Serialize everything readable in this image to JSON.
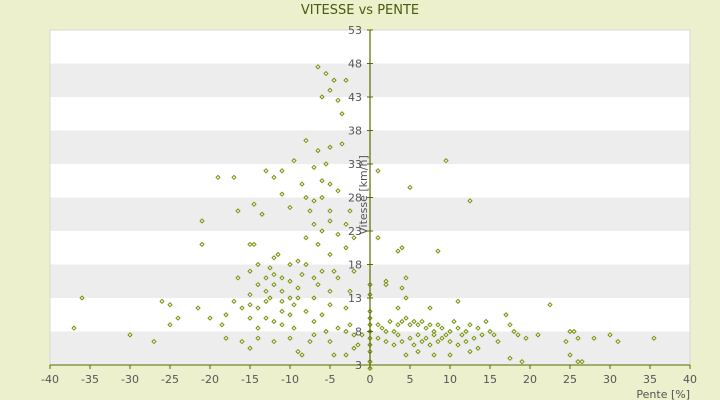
{
  "chart_data": {
    "type": "scatter",
    "title": "VITESSE vs PENTE",
    "xlabel": "Pente [%]",
    "ylabel": "Vitesse [km/h]",
    "xlim": [
      -40,
      40
    ],
    "ylim": [
      3,
      53
    ],
    "x_ticks": [
      -40,
      -35,
      -30,
      -25,
      -20,
      -15,
      -10,
      -5,
      0,
      5,
      10,
      15,
      20,
      25,
      30,
      35,
      40
    ],
    "y_ticks": [
      3,
      8,
      13,
      18,
      23,
      28,
      33,
      38,
      43,
      48,
      53
    ],
    "grid": "alternating horizontal bands",
    "legend": "none",
    "colors": {
      "background": "#ecf0cc",
      "band_light": "#ffffff",
      "band_dark": "#ededed",
      "marker": "#6b8a00",
      "axis": "#5a6a00"
    },
    "points": [
      [
        -6.5,
        47.5
      ],
      [
        -5.5,
        46.5
      ],
      [
        -4.5,
        45.5
      ],
      [
        -3.0,
        45.5
      ],
      [
        -5.0,
        44.0
      ],
      [
        -6.0,
        43.0
      ],
      [
        -4.0,
        42.5
      ],
      [
        -3.5,
        40.5
      ],
      [
        -8.0,
        36.5
      ],
      [
        -5.0,
        35.5
      ],
      [
        -6.5,
        35.0
      ],
      [
        -3.5,
        36.0
      ],
      [
        -9.5,
        33.5
      ],
      [
        -5.5,
        33.0
      ],
      [
        -7.0,
        32.5
      ],
      [
        -13.0,
        32.0
      ],
      [
        -12.0,
        31.0
      ],
      [
        -11.0,
        32.0
      ],
      [
        -19.0,
        31.0
      ],
      [
        -17.0,
        31.0
      ],
      [
        -8.5,
        30.0
      ],
      [
        -6.0,
        30.5
      ],
      [
        -5.0,
        30.0
      ],
      [
        -4.0,
        29.0
      ],
      [
        -11.0,
        28.5
      ],
      [
        -8.0,
        28.0
      ],
      [
        -7.0,
        27.5
      ],
      [
        -6.0,
        28.0
      ],
      [
        -14.5,
        27.0
      ],
      [
        -10.0,
        26.5
      ],
      [
        -7.5,
        26.0
      ],
      [
        -5.0,
        26.0
      ],
      [
        -16.5,
        26.0
      ],
      [
        -13.5,
        25.5
      ],
      [
        -2.5,
        26.0
      ],
      [
        -21.0,
        24.5
      ],
      [
        -7.0,
        24.0
      ],
      [
        -5.0,
        24.5
      ],
      [
        -3.0,
        24.0
      ],
      [
        -6.0,
        23.0
      ],
      [
        -4.0,
        22.5
      ],
      [
        -2.0,
        22.0
      ],
      [
        -8.0,
        22.0
      ],
      [
        -14.5,
        21.0
      ],
      [
        -15.0,
        21.0
      ],
      [
        -21.0,
        21.0
      ],
      [
        -6.5,
        21.0
      ],
      [
        -3.0,
        20.5
      ],
      [
        -5.0,
        19.5
      ],
      [
        -11.5,
        19.5
      ],
      [
        -12.0,
        19.0
      ],
      [
        -9.0,
        18.5
      ],
      [
        -14.0,
        18.0
      ],
      [
        -10.0,
        18.0
      ],
      [
        -8.0,
        18.0
      ],
      [
        -12.5,
        17.5
      ],
      [
        -15.0,
        17.0
      ],
      [
        -6.0,
        17.0
      ],
      [
        -4.5,
        17.0
      ],
      [
        -2.0,
        17.0
      ],
      [
        -12.0,
        16.5
      ],
      [
        -8.5,
        16.5
      ],
      [
        -16.5,
        16.0
      ],
      [
        -13.0,
        16.0
      ],
      [
        -11.0,
        16.0
      ],
      [
        -7.0,
        16.0
      ],
      [
        -4.0,
        16.0
      ],
      [
        -10.0,
        15.5
      ],
      [
        -14.0,
        15.0
      ],
      [
        -12.0,
        15.0
      ],
      [
        -6.5,
        15.0
      ],
      [
        -9.0,
        14.5
      ],
      [
        -5.0,
        14.0
      ],
      [
        -13.0,
        14.0
      ],
      [
        -11.0,
        14.0
      ],
      [
        -2.5,
        14.0
      ],
      [
        -15.0,
        13.5
      ],
      [
        -12.5,
        13.0
      ],
      [
        -10.0,
        13.0
      ],
      [
        -9.0,
        13.0
      ],
      [
        -7.0,
        13.0
      ],
      [
        -36.0,
        13.0
      ],
      [
        -26.0,
        12.5
      ],
      [
        -17.0,
        12.5
      ],
      [
        -13.0,
        12.5
      ],
      [
        -11.0,
        12.5
      ],
      [
        -15.0,
        12.0
      ],
      [
        -9.5,
        12.0
      ],
      [
        -5.0,
        12.0
      ],
      [
        -25.0,
        12.0
      ],
      [
        -21.5,
        11.5
      ],
      [
        -16.0,
        11.5
      ],
      [
        -14.0,
        11.5
      ],
      [
        -11.0,
        11.0
      ],
      [
        -8.0,
        11.0
      ],
      [
        -3.0,
        11.5
      ],
      [
        -18.0,
        10.5
      ],
      [
        -13.0,
        10.0
      ],
      [
        -10.0,
        10.5
      ],
      [
        -6.0,
        10.5
      ],
      [
        -24.0,
        10.0
      ],
      [
        -20.0,
        10.0
      ],
      [
        -15.0,
        10.0
      ],
      [
        -12.0,
        9.5
      ],
      [
        -7.0,
        9.5
      ],
      [
        -18.5,
        9.0
      ],
      [
        -11.0,
        9.0
      ],
      [
        -14.0,
        8.5
      ],
      [
        -9.5,
        8.5
      ],
      [
        -5.5,
        8.0
      ],
      [
        -25.0,
        9.0
      ],
      [
        -37.0,
        8.5
      ],
      [
        -30.0,
        7.5
      ],
      [
        -18.0,
        7.0
      ],
      [
        -14.0,
        7.0
      ],
      [
        -10.0,
        7.0
      ],
      [
        -7.0,
        7.5
      ],
      [
        -3.0,
        8.0
      ],
      [
        -2.0,
        7.5
      ],
      [
        -27.0,
        6.5
      ],
      [
        -16.0,
        6.5
      ],
      [
        -12.0,
        6.5
      ],
      [
        -7.5,
        6.5
      ],
      [
        -5.0,
        6.5
      ],
      [
        -15.0,
        5.5
      ],
      [
        -9.0,
        5.0
      ],
      [
        -8.5,
        4.5
      ],
      [
        -4.5,
        4.5
      ],
      [
        -3.0,
        4.5
      ],
      [
        -2.0,
        5.5
      ],
      [
        -1.5,
        6.0
      ],
      [
        -1.0,
        7.5
      ],
      [
        -4.0,
        8.5
      ],
      [
        -2.5,
        9.0
      ],
      [
        0.0,
        2.5
      ],
      [
        0.0,
        3.5
      ],
      [
        0.0,
        5.0
      ],
      [
        0.0,
        6.0
      ],
      [
        0.0,
        7.0
      ],
      [
        0.0,
        8.0
      ],
      [
        0.0,
        9.0
      ],
      [
        0.0,
        10.0
      ],
      [
        0.0,
        11.0
      ],
      [
        0.0,
        13.5
      ],
      [
        0.0,
        15.0
      ],
      [
        1.0,
        32.0
      ],
      [
        1.0,
        22.0
      ],
      [
        2.0,
        15.5
      ],
      [
        2.0,
        15.0
      ],
      [
        3.5,
        20.0
      ],
      [
        4.0,
        20.5
      ],
      [
        4.5,
        16.0
      ],
      [
        4.0,
        14.5
      ],
      [
        4.5,
        13.0
      ],
      [
        3.5,
        11.5
      ],
      [
        5.0,
        29.5
      ],
      [
        8.5,
        20.0
      ],
      [
        9.5,
        33.5
      ],
      [
        12.5,
        27.5
      ],
      [
        7.5,
        11.5
      ],
      [
        11.0,
        12.5
      ],
      [
        1.0,
        9.0
      ],
      [
        1.5,
        8.5
      ],
      [
        2.0,
        8.0
      ],
      [
        2.5,
        9.5
      ],
      [
        3.0,
        8.0
      ],
      [
        3.5,
        9.0
      ],
      [
        4.0,
        9.5
      ],
      [
        4.5,
        10.0
      ],
      [
        5.0,
        9.0
      ],
      [
        5.5,
        9.5
      ],
      [
        6.0,
        9.0
      ],
      [
        6.5,
        9.5
      ],
      [
        7.0,
        8.5
      ],
      [
        7.5,
        9.0
      ],
      [
        8.0,
        8.0
      ],
      [
        8.5,
        9.0
      ],
      [
        9.0,
        8.5
      ],
      [
        9.5,
        7.5
      ],
      [
        10.0,
        8.0
      ],
      [
        10.5,
        9.5
      ],
      [
        11.0,
        8.5
      ],
      [
        11.5,
        7.5
      ],
      [
        12.0,
        8.0
      ],
      [
        12.5,
        9.0
      ],
      [
        13.0,
        7.0
      ],
      [
        13.5,
        8.5
      ],
      [
        14.0,
        7.5
      ],
      [
        14.5,
        9.5
      ],
      [
        15.0,
        8.0
      ],
      [
        15.5,
        7.5
      ],
      [
        16.0,
        6.5
      ],
      [
        17.0,
        10.5
      ],
      [
        17.5,
        9.0
      ],
      [
        18.0,
        8.0
      ],
      [
        18.5,
        7.5
      ],
      [
        19.5,
        7.0
      ],
      [
        21.0,
        7.5
      ],
      [
        22.5,
        12.0
      ],
      [
        25.0,
        8.0
      ],
      [
        24.5,
        6.5
      ],
      [
        25.5,
        8.0
      ],
      [
        26.0,
        7.0
      ],
      [
        28.0,
        7.0
      ],
      [
        30.0,
        7.5
      ],
      [
        31.0,
        6.5
      ],
      [
        35.5,
        7.0
      ],
      [
        1.0,
        7.0
      ],
      [
        2.0,
        6.5
      ],
      [
        3.0,
        6.0
      ],
      [
        3.5,
        7.5
      ],
      [
        4.0,
        6.5
      ],
      [
        5.0,
        7.0
      ],
      [
        5.5,
        6.0
      ],
      [
        6.0,
        7.5
      ],
      [
        6.5,
        6.5
      ],
      [
        7.0,
        7.0
      ],
      [
        7.5,
        6.0
      ],
      [
        8.0,
        7.5
      ],
      [
        8.5,
        6.5
      ],
      [
        9.0,
        7.0
      ],
      [
        10.0,
        6.5
      ],
      [
        11.0,
        6.0
      ],
      [
        12.0,
        6.5
      ],
      [
        13.5,
        5.5
      ],
      [
        4.5,
        4.5
      ],
      [
        10.0,
        4.5
      ],
      [
        12.5,
        5.0
      ],
      [
        17.5,
        4.0
      ],
      [
        19.0,
        3.5
      ],
      [
        25.0,
        4.5
      ],
      [
        26.0,
        3.5
      ],
      [
        26.5,
        3.5
      ],
      [
        6.0,
        5.0
      ],
      [
        8.0,
        4.5
      ]
    ]
  }
}
